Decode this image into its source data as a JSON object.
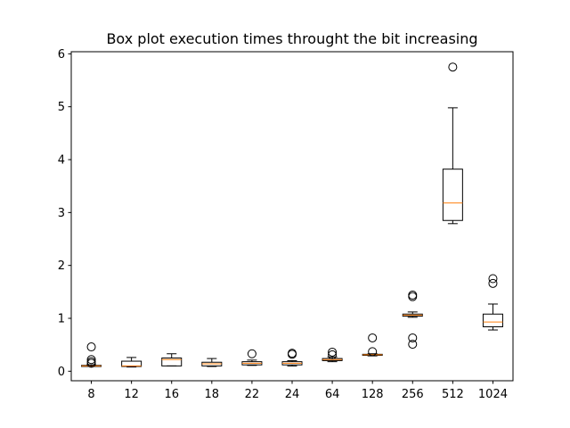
{
  "chart_data": {
    "type": "box",
    "title": "Box plot execution times throught the bit increasing",
    "xlabel": "",
    "ylabel": "",
    "categories": [
      "8",
      "12",
      "16",
      "18",
      "22",
      "24",
      "64",
      "128",
      "256",
      "512",
      "1024"
    ],
    "ylim": [
      -0.18,
      6.04
    ],
    "yticks": [
      0,
      1,
      2,
      3,
      4,
      5,
      6
    ],
    "grid": false,
    "colors": {
      "box": "#000000",
      "median": "#ff7f0e",
      "background": "#ffffff"
    },
    "boxes": [
      {
        "label": "8",
        "whislo": 0.09,
        "q1": 0.09,
        "med": 0.1,
        "q3": 0.11,
        "whishi": 0.12,
        "fliers": [
          0.46,
          0.22,
          0.18,
          0.15
        ]
      },
      {
        "label": "12",
        "whislo": 0.08,
        "q1": 0.09,
        "med": 0.1,
        "q3": 0.19,
        "whishi": 0.26,
        "fliers": []
      },
      {
        "label": "16",
        "whislo": 0.1,
        "q1": 0.1,
        "med": 0.22,
        "q3": 0.25,
        "whishi": 0.33,
        "fliers": []
      },
      {
        "label": "18",
        "whislo": 0.09,
        "q1": 0.1,
        "med": 0.14,
        "q3": 0.17,
        "whishi": 0.24,
        "fliers": []
      },
      {
        "label": "22",
        "whislo": 0.11,
        "q1": 0.12,
        "med": 0.15,
        "q3": 0.18,
        "whishi": 0.21,
        "fliers": [
          0.33
        ]
      },
      {
        "label": "24",
        "whislo": 0.1,
        "q1": 0.12,
        "med": 0.15,
        "q3": 0.18,
        "whishi": 0.2,
        "fliers": [
          0.34,
          0.32
        ]
      },
      {
        "label": "64",
        "whislo": 0.18,
        "q1": 0.2,
        "med": 0.22,
        "q3": 0.24,
        "whishi": 0.27,
        "fliers": [
          0.36,
          0.31
        ]
      },
      {
        "label": "128",
        "whislo": 0.29,
        "q1": 0.3,
        "med": 0.31,
        "q3": 0.32,
        "whishi": 0.33,
        "fliers": [
          0.63,
          0.37
        ]
      },
      {
        "label": "256",
        "whislo": 1.02,
        "q1": 1.04,
        "med": 1.06,
        "q3": 1.08,
        "whishi": 1.12,
        "fliers": [
          1.44,
          1.41,
          0.63,
          0.51
        ]
      },
      {
        "label": "512",
        "whislo": 2.79,
        "q1": 2.85,
        "med": 3.18,
        "q3": 3.82,
        "whishi": 4.98,
        "fliers": [
          5.75
        ]
      },
      {
        "label": "1024",
        "whislo": 0.78,
        "q1": 0.84,
        "med": 0.93,
        "q3": 1.08,
        "whishi": 1.27,
        "fliers": [
          1.75,
          1.66
        ]
      }
    ]
  }
}
